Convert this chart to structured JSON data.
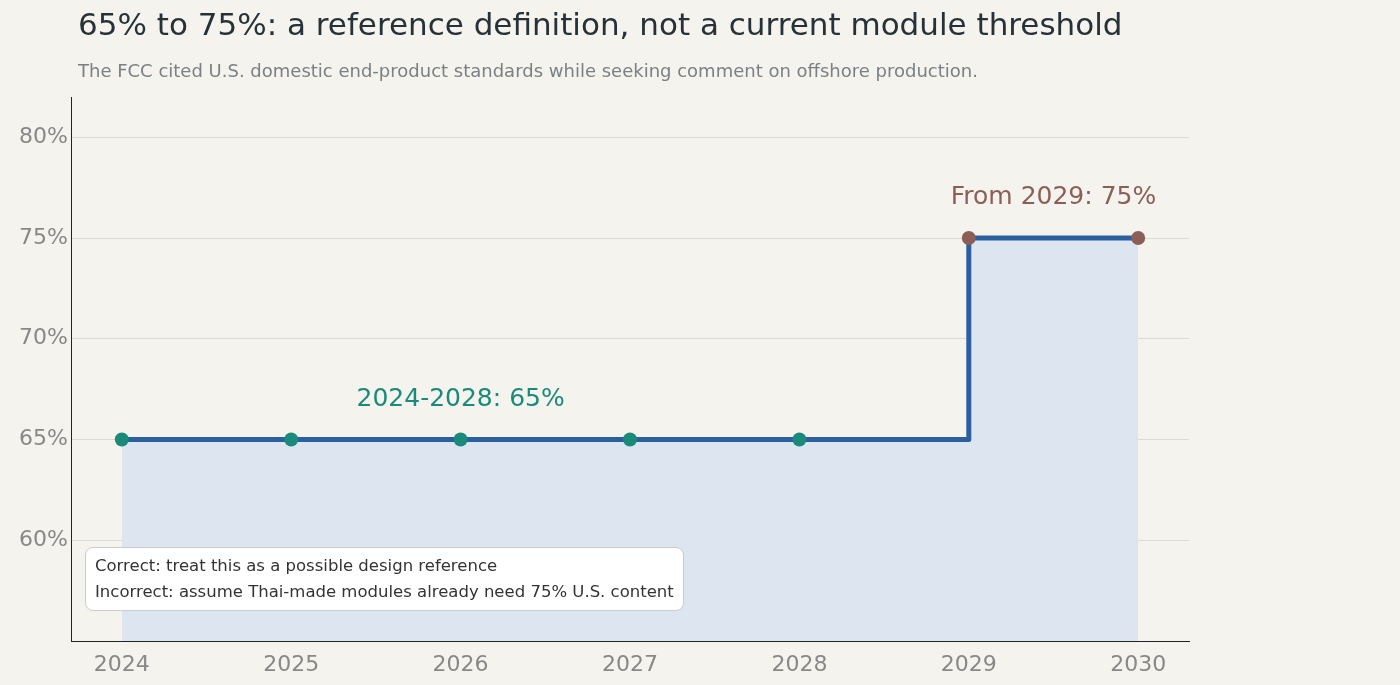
{
  "chart_data": {
    "type": "step",
    "title": "65% to 75%: a reference definition, not a current module threshold",
    "subtitle": "The FCC cited U.S. domestic end-product standards while seeking comment on offshore production.",
    "x": [
      2024,
      2025,
      2026,
      2027,
      2028,
      2029,
      2030
    ],
    "series": [
      {
        "type": "area",
        "marker": "none",
        "color": "#dde6f0",
        "values": [
          65,
          65,
          65,
          65,
          65,
          75,
          75
        ]
      },
      {
        "color": "#2a5fa0",
        "colors": [
          "#1a8a7a",
          "#1a8a7a",
          "#1a8a7a",
          "#1a8a7a",
          "#1a8a7a",
          "#8b5e57",
          "#8b5e57"
        ],
        "values": [
          65,
          65,
          65,
          65,
          65,
          75,
          75
        ]
      }
    ],
    "xlim": [
      2023.7,
      2030.3
    ],
    "xticks": [
      2024,
      2025,
      2026,
      2027,
      2028,
      2029,
      2030
    ],
    "ylim": [
      55,
      82
    ],
    "yticks": [
      {
        "value": 60,
        "label": "60%"
      },
      {
        "value": 65,
        "label": "65%"
      },
      {
        "value": 70,
        "label": "70%"
      },
      {
        "value": 75,
        "label": "75%"
      },
      {
        "value": 80,
        "label": "80%"
      }
    ],
    "grid": "y",
    "marker": "circle",
    "legend": false,
    "annotations": [
      {
        "text": "2024-2028: 65%",
        "x": 2026,
        "y": 65
      },
      {
        "text": "From 2029: 75%",
        "x": 2029.5,
        "y": 75
      },
      "Correct: treat this as a possible design reference",
      "Incorrect: assume Thai-made modules already need 75% U.S. content"
    ]
  }
}
